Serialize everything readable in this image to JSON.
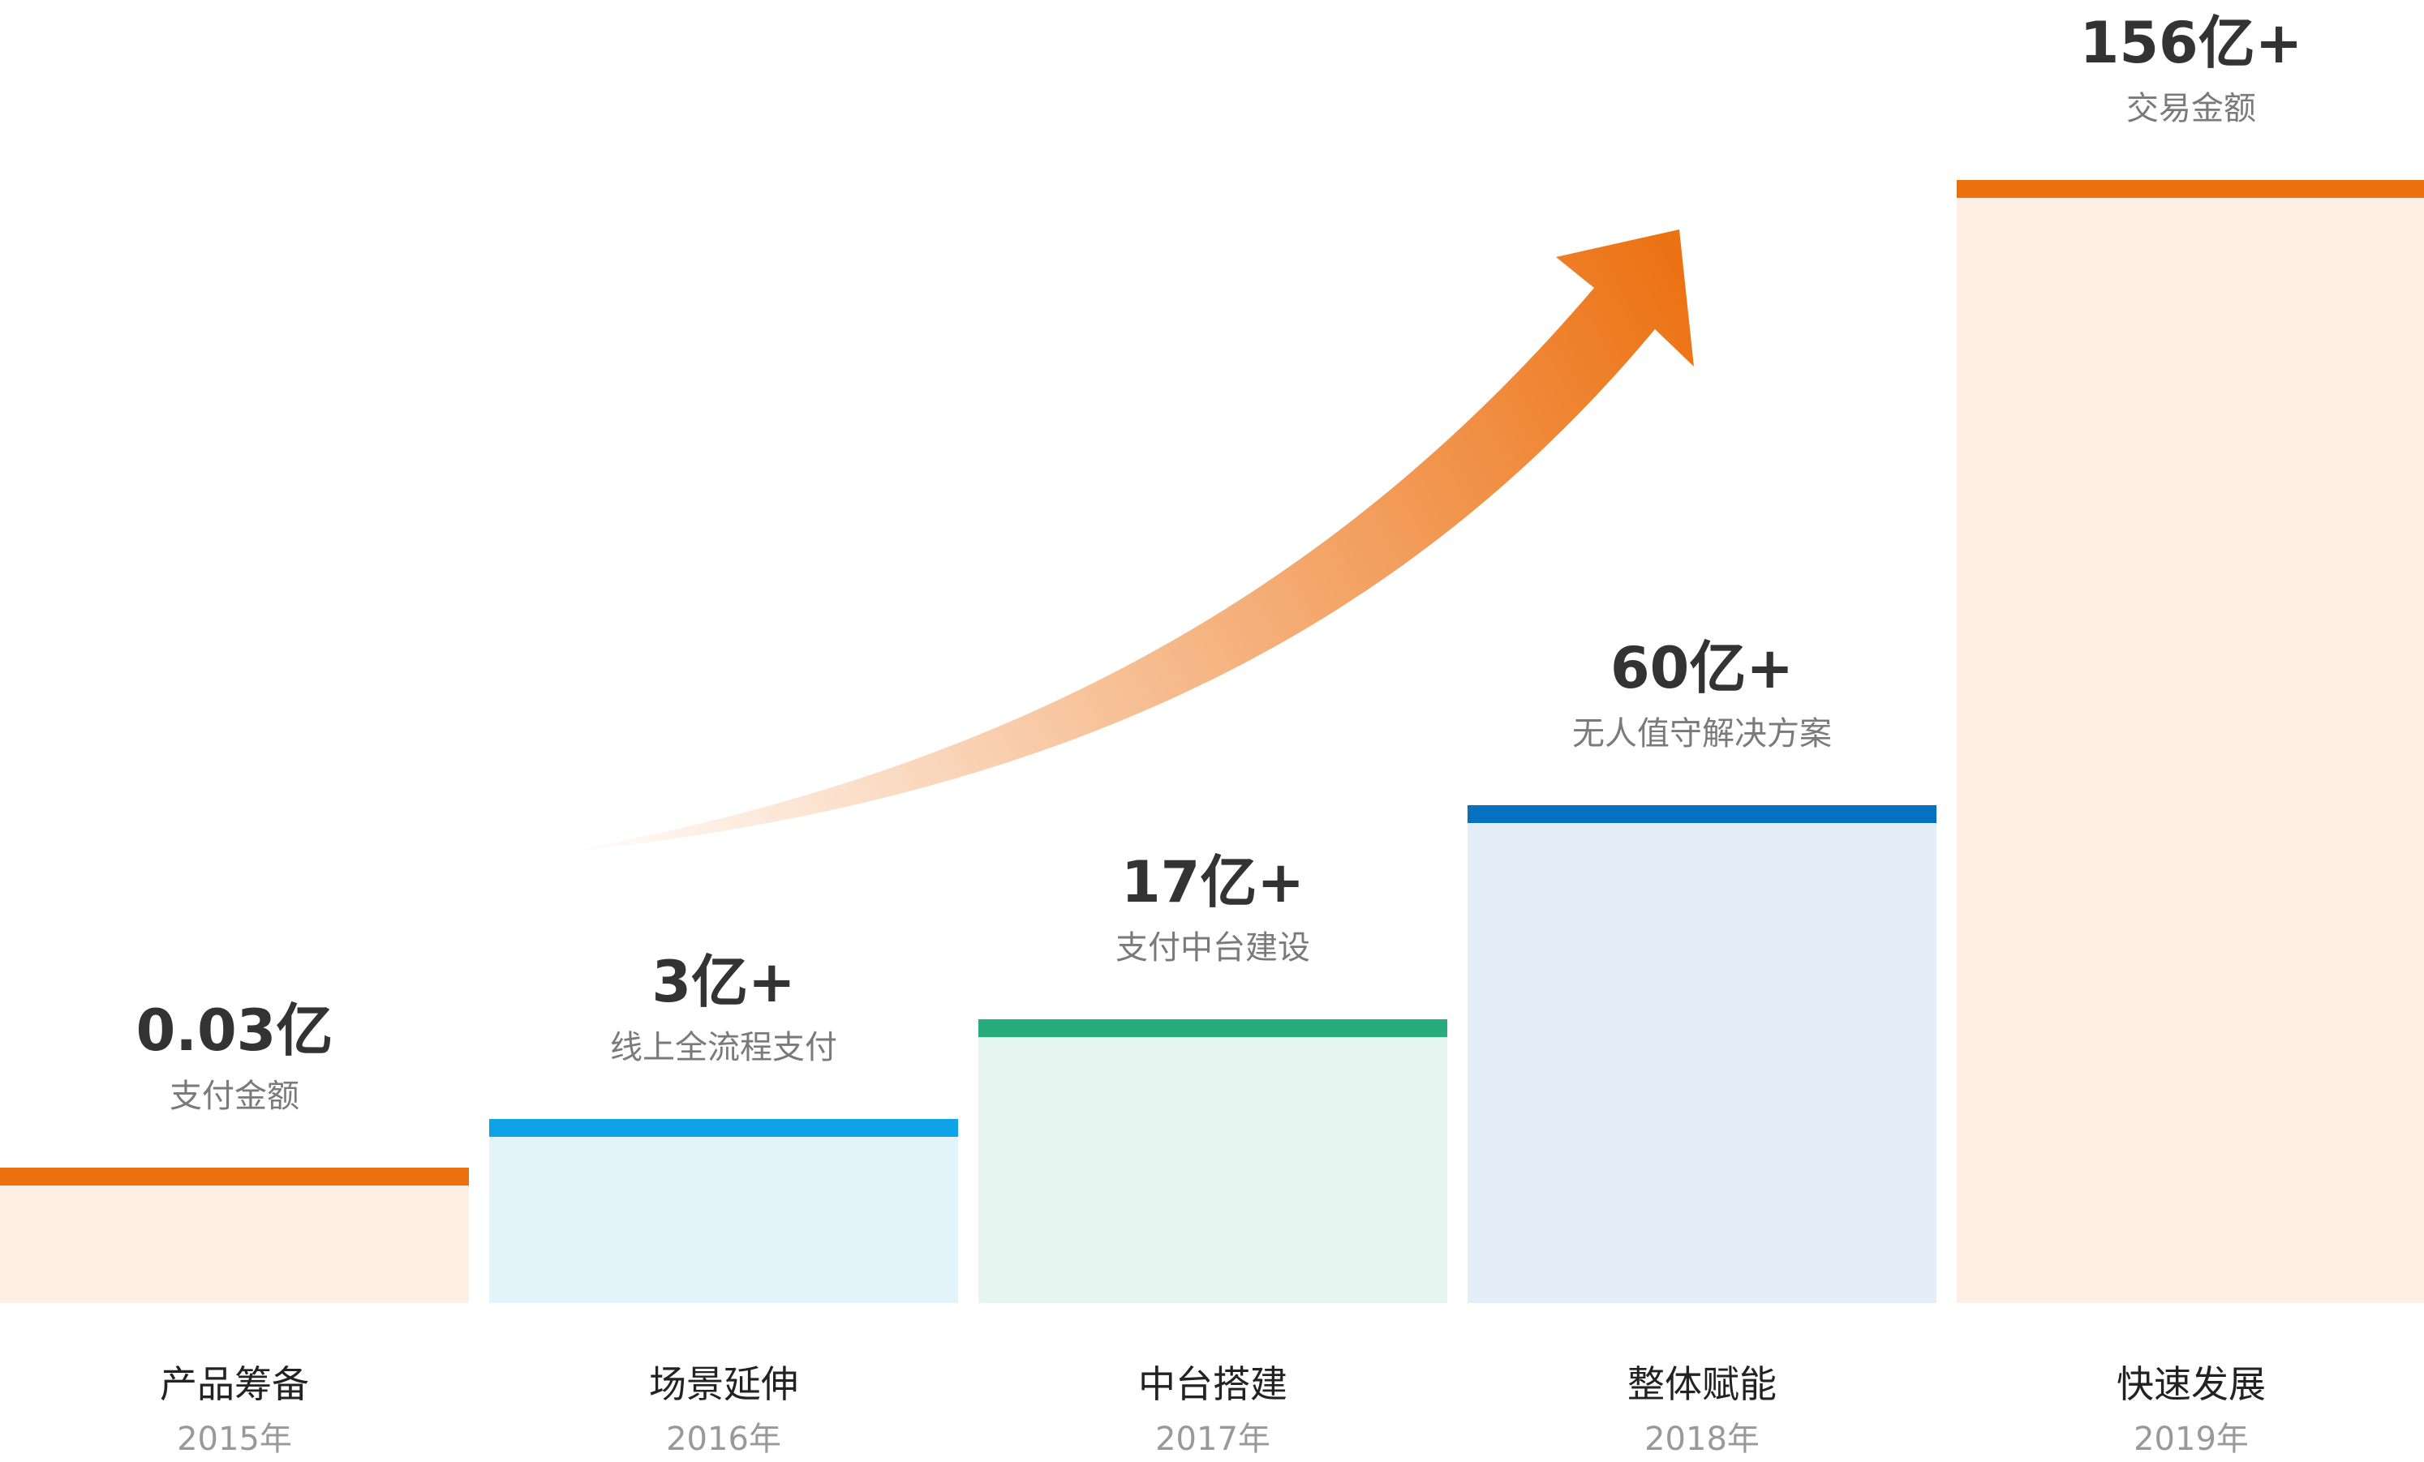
{
  "chart_data": {
    "type": "bar",
    "title": "",
    "xlabel": "",
    "ylabel": "",
    "categories": [
      "产品筹备",
      "场景延伸",
      "中台搭建",
      "整体赋能",
      "快速发展"
    ],
    "years": [
      "2015年",
      "2016年",
      "2017年",
      "2018年",
      "2019年"
    ],
    "values": [
      0.03,
      3,
      17,
      60,
      156
    ],
    "value_labels": [
      "0.03亿",
      "3亿+",
      "17亿+",
      "60亿+",
      "156亿+"
    ],
    "descriptions": [
      "支付金额",
      "线上全流程支付",
      "支付中台建设",
      "无人值守解决方案",
      "交易金额"
    ],
    "colors": [
      {
        "top": "#ed700f",
        "fill": "#fdefe3"
      },
      {
        "top": "#0ea2e7",
        "fill": "#e3f3fa"
      },
      {
        "top": "#28ac7c",
        "fill": "#e6f5ef"
      },
      {
        "top": "#0670c1",
        "fill": "#e3eef8"
      },
      {
        "top": "#ed700f",
        "fill": "#fdefe3"
      }
    ],
    "arrow_color": "#ec6f0e",
    "bar_value_scale": "stepped",
    "grid": false,
    "legend": "none"
  }
}
